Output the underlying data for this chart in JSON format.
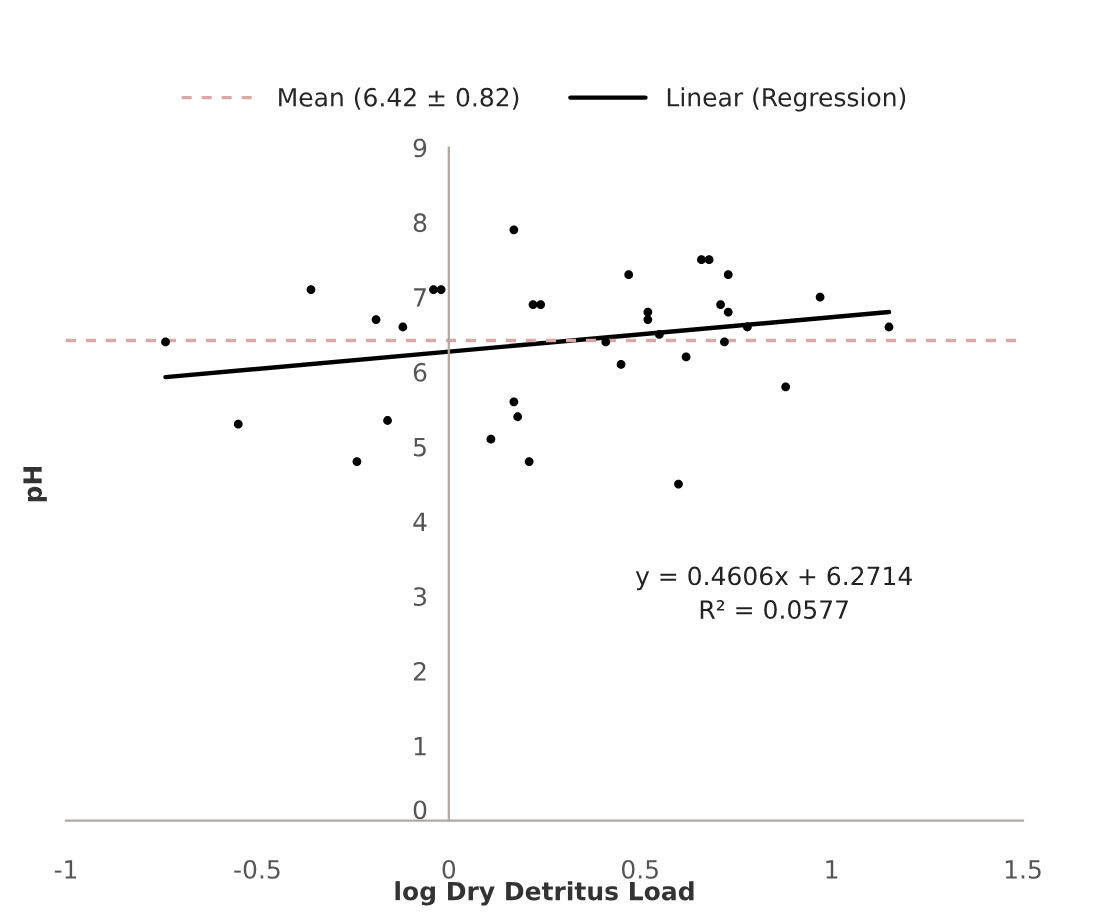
{
  "chart_data": {
    "type": "scatter",
    "xlabel": "log Dry Detritus Load",
    "ylabel": "pH",
    "xlim": [
      -1,
      1.5
    ],
    "xticks": [
      -1,
      -0.5,
      0,
      0.5,
      1,
      1.5
    ],
    "ylim": [
      0,
      9
    ],
    "yticks": [
      0,
      1,
      2,
      3,
      4,
      5,
      6,
      7,
      8,
      9
    ],
    "grid": false,
    "legend": "top",
    "series": [
      {
        "color": "#000000",
        "marker": "circle",
        "x": [
          -0.74,
          -0.55,
          -0.36,
          -0.24,
          -0.19,
          -0.16,
          -0.12,
          -0.04,
          -0.02,
          0.11,
          0.17,
          0.17,
          0.18,
          0.21,
          0.22,
          0.24,
          0.41,
          0.45,
          0.47,
          0.52,
          0.52,
          0.55,
          0.6,
          0.62,
          0.66,
          0.68,
          0.71,
          0.72,
          0.73,
          0.73,
          0.78,
          0.88,
          0.97,
          1.15
        ],
        "values": [
          6.4,
          5.3,
          7.1,
          4.8,
          6.7,
          5.35,
          6.6,
          7.1,
          7.1,
          5.1,
          5.6,
          7.9,
          5.4,
          4.8,
          6.9,
          6.9,
          6.4,
          6.1,
          7.3,
          6.8,
          6.7,
          6.5,
          4.5,
          6.2,
          7.5,
          7.5,
          6.9,
          6.4,
          6.8,
          7.3,
          6.6,
          5.8,
          7.0,
          6.6
        ]
      },
      {
        "type": "line",
        "name": "Linear (Regression)",
        "color": "#000000",
        "line_style": "solid",
        "x": [
          -0.74,
          1.15
        ],
        "values": [
          5.93,
          6.8
        ]
      }
    ],
    "ref_lines": [
      {
        "axis": "y",
        "value": 6.42,
        "label": "Mean (6.42 ± 0.82)",
        "color": "#d9a8a8",
        "line_style": "dashed"
      }
    ],
    "annotations": [
      "y = 0.4606x + 6.2714",
      "R² = 0.0577"
    ]
  }
}
